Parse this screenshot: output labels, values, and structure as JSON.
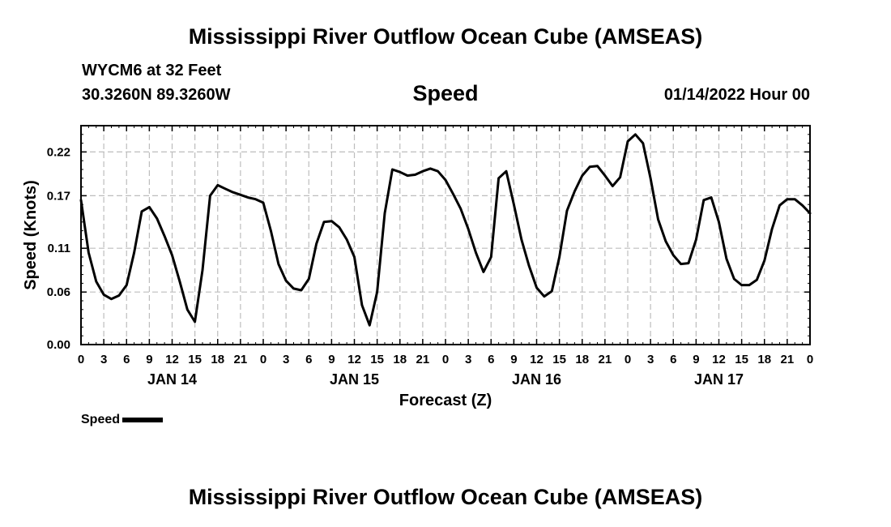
{
  "header": {
    "title": "Mississippi River Outflow Ocean Cube (AMSEAS)",
    "station": "WYCM6 at 32 Feet",
    "coords": "30.3260N  89.3260W",
    "variable": "Speed",
    "datetime": "01/14/2022 Hour 00"
  },
  "footer": {
    "title": "Mississippi River Outflow Ocean Cube (AMSEAS)"
  },
  "legend": {
    "label": "Speed"
  },
  "chart_data": {
    "type": "line",
    "title": "Speed",
    "xlabel": "Forecast (Z)",
    "ylabel": "Speed (Knots)",
    "xlim": [
      0,
      96
    ],
    "ylim": [
      0,
      0.25
    ],
    "yticks": [
      0.0,
      0.06,
      0.11,
      0.17,
      0.22
    ],
    "ytick_labels": [
      "0.00",
      "0.06",
      "0.11",
      "0.17",
      "0.22"
    ],
    "xticks": [
      0,
      3,
      6,
      9,
      12,
      15,
      18,
      21,
      24,
      27,
      30,
      33,
      36,
      39,
      42,
      45,
      48,
      51,
      54,
      57,
      60,
      63,
      66,
      69,
      72,
      75,
      78,
      81,
      84,
      87,
      90,
      93,
      96
    ],
    "xtick_labels": [
      "0",
      "3",
      "6",
      "9",
      "12",
      "15",
      "18",
      "21",
      "0",
      "3",
      "6",
      "9",
      "12",
      "15",
      "18",
      "21",
      "0",
      "3",
      "6",
      "9",
      "12",
      "15",
      "18",
      "21",
      "0",
      "3",
      "6",
      "9",
      "12",
      "15",
      "18",
      "21",
      "0"
    ],
    "day_labels": [
      {
        "label": "JAN 14",
        "x": 12
      },
      {
        "label": "JAN 15",
        "x": 36
      },
      {
        "label": "JAN 16",
        "x": 60
      },
      {
        "label": "JAN 17",
        "x": 84
      }
    ],
    "grid": true,
    "legend_position": "bottom-left",
    "series": [
      {
        "name": "Speed",
        "color": "#000000",
        "x": [
          0,
          1,
          2,
          3,
          4,
          5,
          6,
          7,
          8,
          9,
          10,
          11,
          12,
          13,
          14,
          15,
          16,
          17,
          18,
          19,
          20,
          21,
          22,
          23,
          24,
          25,
          26,
          27,
          28,
          29,
          30,
          31,
          32,
          33,
          34,
          35,
          36,
          37,
          38,
          39,
          40,
          41,
          42,
          43,
          44,
          45,
          46,
          47,
          48,
          49,
          50,
          51,
          52,
          53,
          54,
          55,
          56,
          57,
          58,
          59,
          60,
          61,
          62,
          63,
          64,
          65,
          66,
          67,
          68,
          69,
          70,
          71,
          72,
          73,
          74,
          75,
          76,
          77,
          78,
          79,
          80,
          81,
          82,
          83,
          84,
          85,
          86,
          87,
          88,
          89,
          90,
          91,
          92,
          93,
          94,
          95,
          96
        ],
        "y": [
          0.165,
          0.105,
          0.072,
          0.057,
          0.052,
          0.056,
          0.068,
          0.105,
          0.152,
          0.157,
          0.144,
          0.124,
          0.102,
          0.072,
          0.04,
          0.026,
          0.085,
          0.17,
          0.182,
          0.178,
          0.174,
          0.171,
          0.168,
          0.166,
          0.162,
          0.13,
          0.092,
          0.073,
          0.064,
          0.062,
          0.075,
          0.115,
          0.14,
          0.141,
          0.134,
          0.12,
          0.1,
          0.045,
          0.022,
          0.06,
          0.15,
          0.2,
          0.197,
          0.193,
          0.194,
          0.198,
          0.201,
          0.198,
          0.188,
          0.172,
          0.155,
          0.132,
          0.105,
          0.083,
          0.1,
          0.19,
          0.198,
          0.16,
          0.12,
          0.09,
          0.065,
          0.055,
          0.061,
          0.1,
          0.153,
          0.175,
          0.193,
          0.203,
          0.204,
          0.193,
          0.181,
          0.191,
          0.232,
          0.24,
          0.23,
          0.19,
          0.143,
          0.118,
          0.102,
          0.092,
          0.093,
          0.12,
          0.165,
          0.168,
          0.14,
          0.098,
          0.075,
          0.068,
          0.068,
          0.074,
          0.096,
          0.132,
          0.159,
          0.166,
          0.166,
          0.159,
          0.15
        ]
      }
    ]
  }
}
